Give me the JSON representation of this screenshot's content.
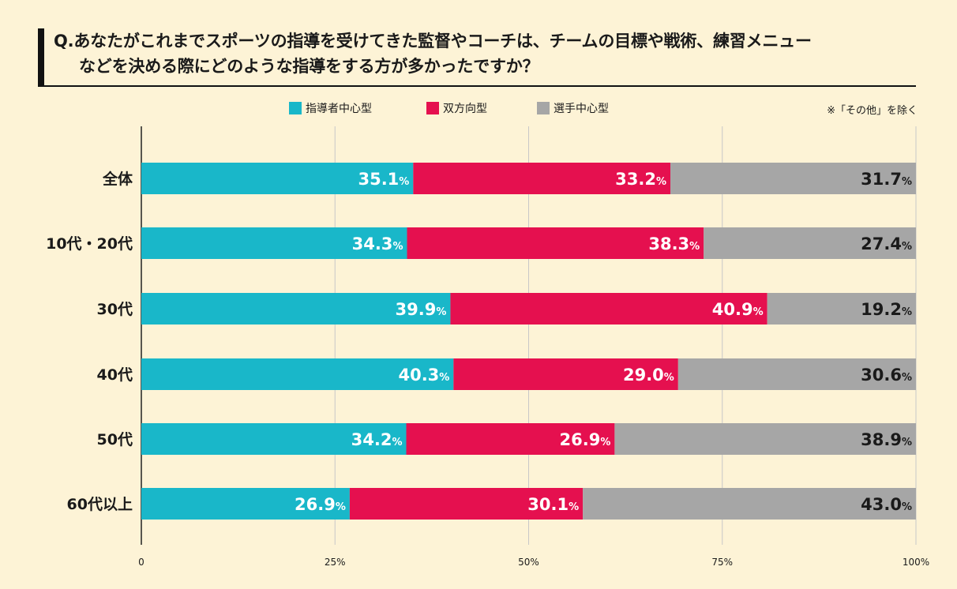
{
  "title": {
    "line1": "Q.あなたがこれまでスポーツの指導を受けてきた監督やコーチは、チームの目標や戦術、練習メニュー",
    "line2": "などを決める際にどのような指導をする方が多かったですか？"
  },
  "note": "※「その他」を除く",
  "colors": {
    "series": [
      "#19b7c9",
      "#e5104f",
      "#a6a6a6"
    ],
    "series_text": [
      "#ffffff",
      "#ffffff",
      "#1a1a1a"
    ],
    "grid": "#c8c8c8",
    "axis": "#222222"
  },
  "chart_data": {
    "type": "bar",
    "orientation": "horizontal",
    "stacked": true,
    "categories": [
      "全体",
      "10代・20代",
      "30代",
      "40代",
      "50代",
      "60代以上"
    ],
    "series": [
      {
        "name": "指導者中心型",
        "values": [
          35.1,
          34.3,
          39.9,
          40.3,
          34.2,
          26.9
        ]
      },
      {
        "name": "双方向型",
        "values": [
          33.2,
          38.3,
          40.9,
          29.0,
          26.9,
          30.1
        ]
      },
      {
        "name": "選手中心型",
        "values": [
          31.7,
          27.4,
          19.2,
          30.6,
          38.9,
          43.0
        ]
      }
    ],
    "data_labels": [
      [
        "35.1",
        "33.2",
        "31.7"
      ],
      [
        "34.3",
        "38.3",
        "27.4"
      ],
      [
        "39.9",
        "40.9",
        "19.2"
      ],
      [
        "40.3",
        "29.0",
        "30.6"
      ],
      [
        "34.2",
        "26.9",
        "38.9"
      ],
      [
        "26.9",
        "30.1",
        "43.0"
      ]
    ],
    "unit_label": "%",
    "x_ticks": [
      0,
      25,
      50,
      75,
      100
    ],
    "x_tick_labels": [
      "0",
      "25%",
      "50%",
      "75%",
      "100%"
    ],
    "xlim": [
      0,
      100
    ],
    "legend_position": "top",
    "grid": true
  }
}
